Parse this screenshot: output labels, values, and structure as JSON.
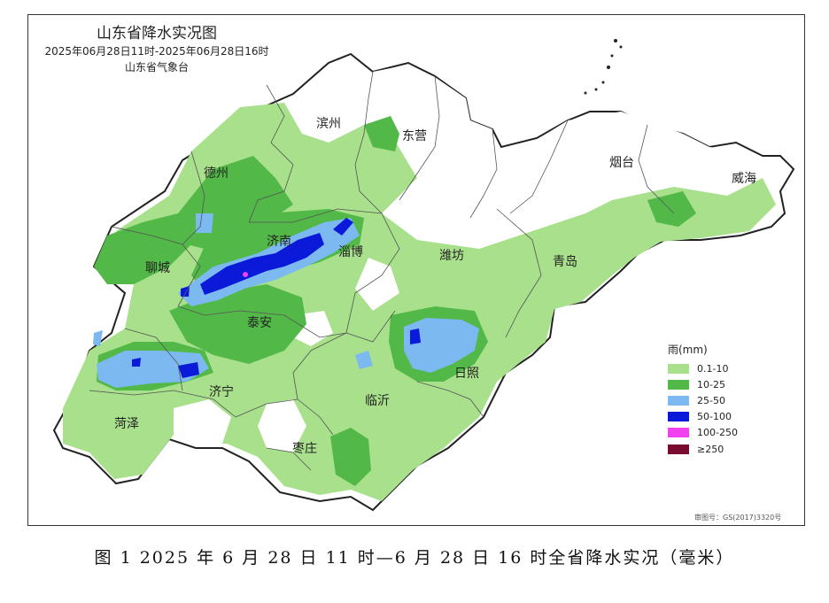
{
  "map": {
    "title": "山东省降水实况图",
    "time_range": "2025年06月28日11时-2025年06月28日16时",
    "agency": "山东省气象台",
    "cities": [
      {
        "name": "滨州"
      },
      {
        "name": "东营"
      },
      {
        "name": "烟台"
      },
      {
        "name": "威海"
      },
      {
        "name": "德州"
      },
      {
        "name": "济南"
      },
      {
        "name": "淄博"
      },
      {
        "name": "潍坊"
      },
      {
        "name": "青岛"
      },
      {
        "name": "聊城"
      },
      {
        "name": "泰安"
      },
      {
        "name": "日照"
      },
      {
        "name": "济宁"
      },
      {
        "name": "临沂"
      },
      {
        "name": "菏泽"
      },
      {
        "name": "枣庄"
      }
    ],
    "legend": {
      "title": "雨(mm)",
      "items": [
        {
          "label": "0.1-10",
          "color": "#a8e08c"
        },
        {
          "label": "10-25",
          "color": "#52b848"
        },
        {
          "label": "25-50",
          "color": "#7cb9f0"
        },
        {
          "label": "50-100",
          "color": "#0a1ad8"
        },
        {
          "label": "100-250",
          "color": "#f040f0"
        },
        {
          "label": "≥250",
          "color": "#7a0a30"
        }
      ]
    },
    "review_number": "审图号：GS(2017)3320号"
  },
  "caption": "图 1  2025 年 6 月 28 日 11 时—6 月 28 日 16 时全省降水实况（毫米）"
}
